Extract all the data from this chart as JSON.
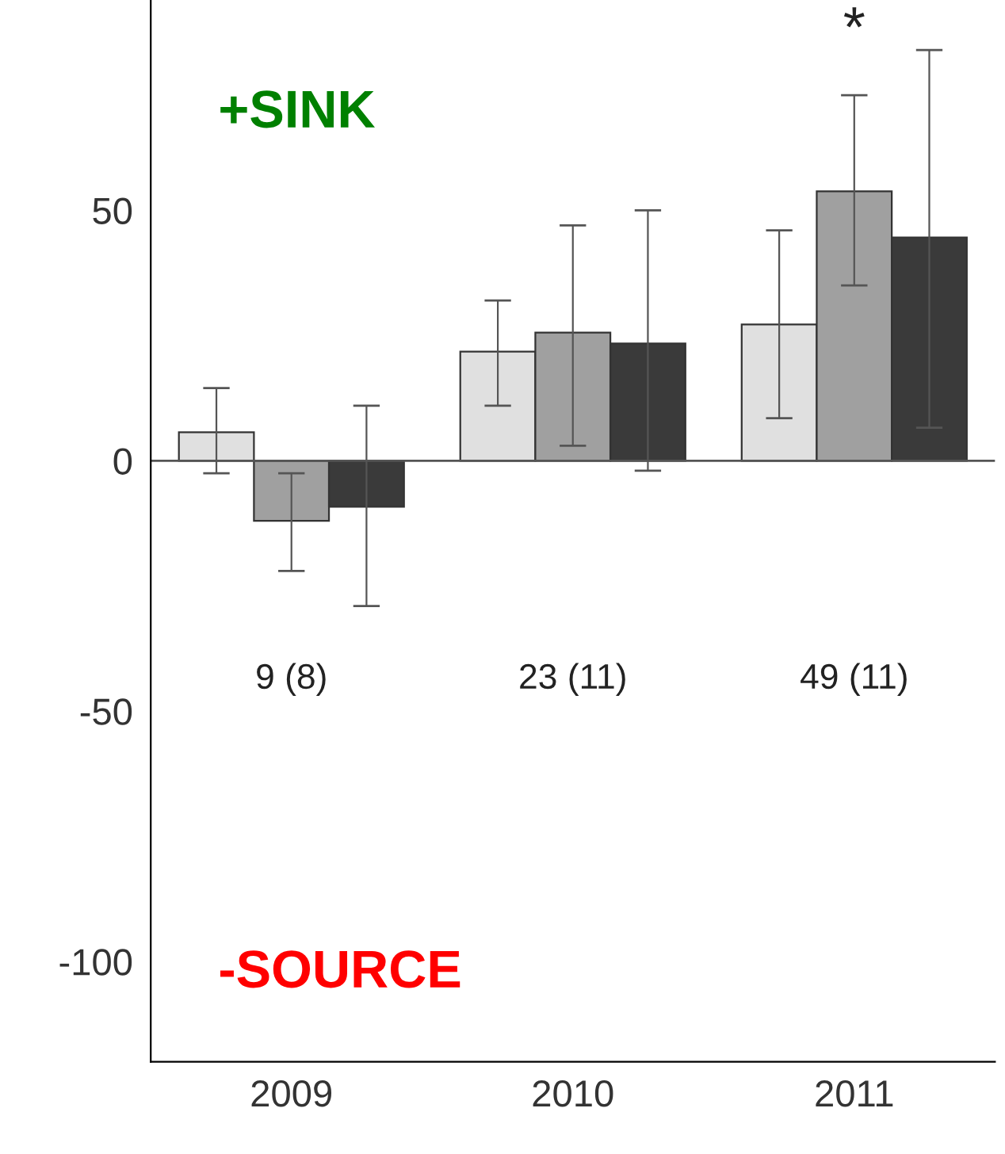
{
  "chart_data": {
    "type": "bar",
    "categories": [
      "2009",
      "2010",
      "2011"
    ],
    "series": [
      {
        "color": "#e0e0e0",
        "values": [
          5.7,
          21.8,
          27.2
        ],
        "errors": [
          [
            -2.5,
            14.5
          ],
          [
            11,
            32
          ],
          [
            8.5,
            46
          ]
        ]
      },
      {
        "color": "#a0a0a0",
        "values": [
          -12,
          25.6,
          53.8
        ],
        "errors": [
          [
            -22,
            -2.5
          ],
          [
            3,
            47
          ],
          [
            35,
            73
          ]
        ]
      },
      {
        "color": "#3a3a3a",
        "values": [
          -9.2,
          23.4,
          44.6
        ],
        "errors": [
          [
            -29,
            11
          ],
          [
            -2,
            50
          ],
          [
            6.6,
            82
          ]
        ]
      }
    ],
    "ylim": [
      -120,
      92
    ],
    "yticks": [
      -100,
      -50,
      0,
      50
    ],
    "ref_lines": [
      {
        "axis": "y",
        "value": 0
      }
    ],
    "annotations": [
      "+SINK",
      "-SOURCE",
      "9 (8)",
      "23 (11)",
      "49 (11)",
      "*"
    ],
    "grid": false,
    "legend": false
  }
}
